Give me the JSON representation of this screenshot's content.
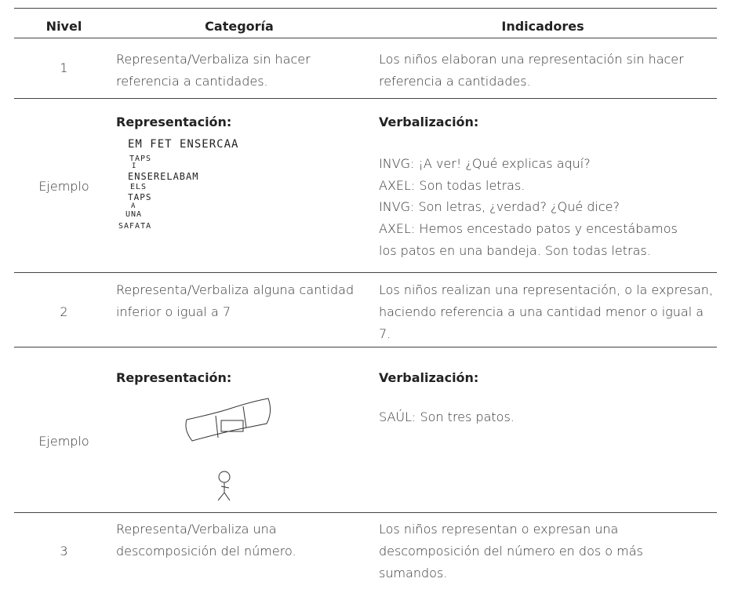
{
  "table": {
    "headers": [
      "Nivel",
      "Categoría",
      "Indicadores"
    ],
    "rows": [
      {
        "nivel": "1",
        "categoria": "Representa/Verbaliza sin hacer referencia a cantidades.",
        "indicadores": "Los niños elaboran una representación sin hacer referencia a cantidades."
      },
      {
        "nivel": "Ejemplo",
        "representacion": "Representación:",
        "drawing": [
          "EM FET ENSERCAA",
          "TAPS",
          "I",
          "ENSERELABAM",
          "ELS",
          "TAPS",
          "A",
          "UNA",
          "SAFATA"
        ],
        "verbalizacion": "Verbalización:",
        "dialogue": [
          "INVG: ¡A ver! ¿Qué explicas aquí?",
          "AXEL: Son todas letras.",
          "INVG: Son letras, ¿verdad? ¿Qué dice?",
          "AXEL: Hemos encestado patos y encestábamos",
          "los patos en una bandeja. Son todas letras."
        ]
      },
      {
        "nivel": "2",
        "categoria": "Representa/Verbaliza alguna cantidad inferior o igual a 7",
        "indicadores": "Los niños realizan una representación, o la expresan, haciendo referencia a una cantidad menor o igual a 7."
      },
      {
        "nivel": "Ejemplo",
        "representacion": "Representación:",
        "verbalizacion": "Verbalización:",
        "dialogue": [
          "SAÚL: Son tres patos."
        ]
      },
      {
        "nivel": "3",
        "categoria": "Representa/Verbaliza una descomposición del número.",
        "indicadores": "Los niños representan o expresan una descomposición del número en dos o más sumandos."
      }
    ]
  }
}
